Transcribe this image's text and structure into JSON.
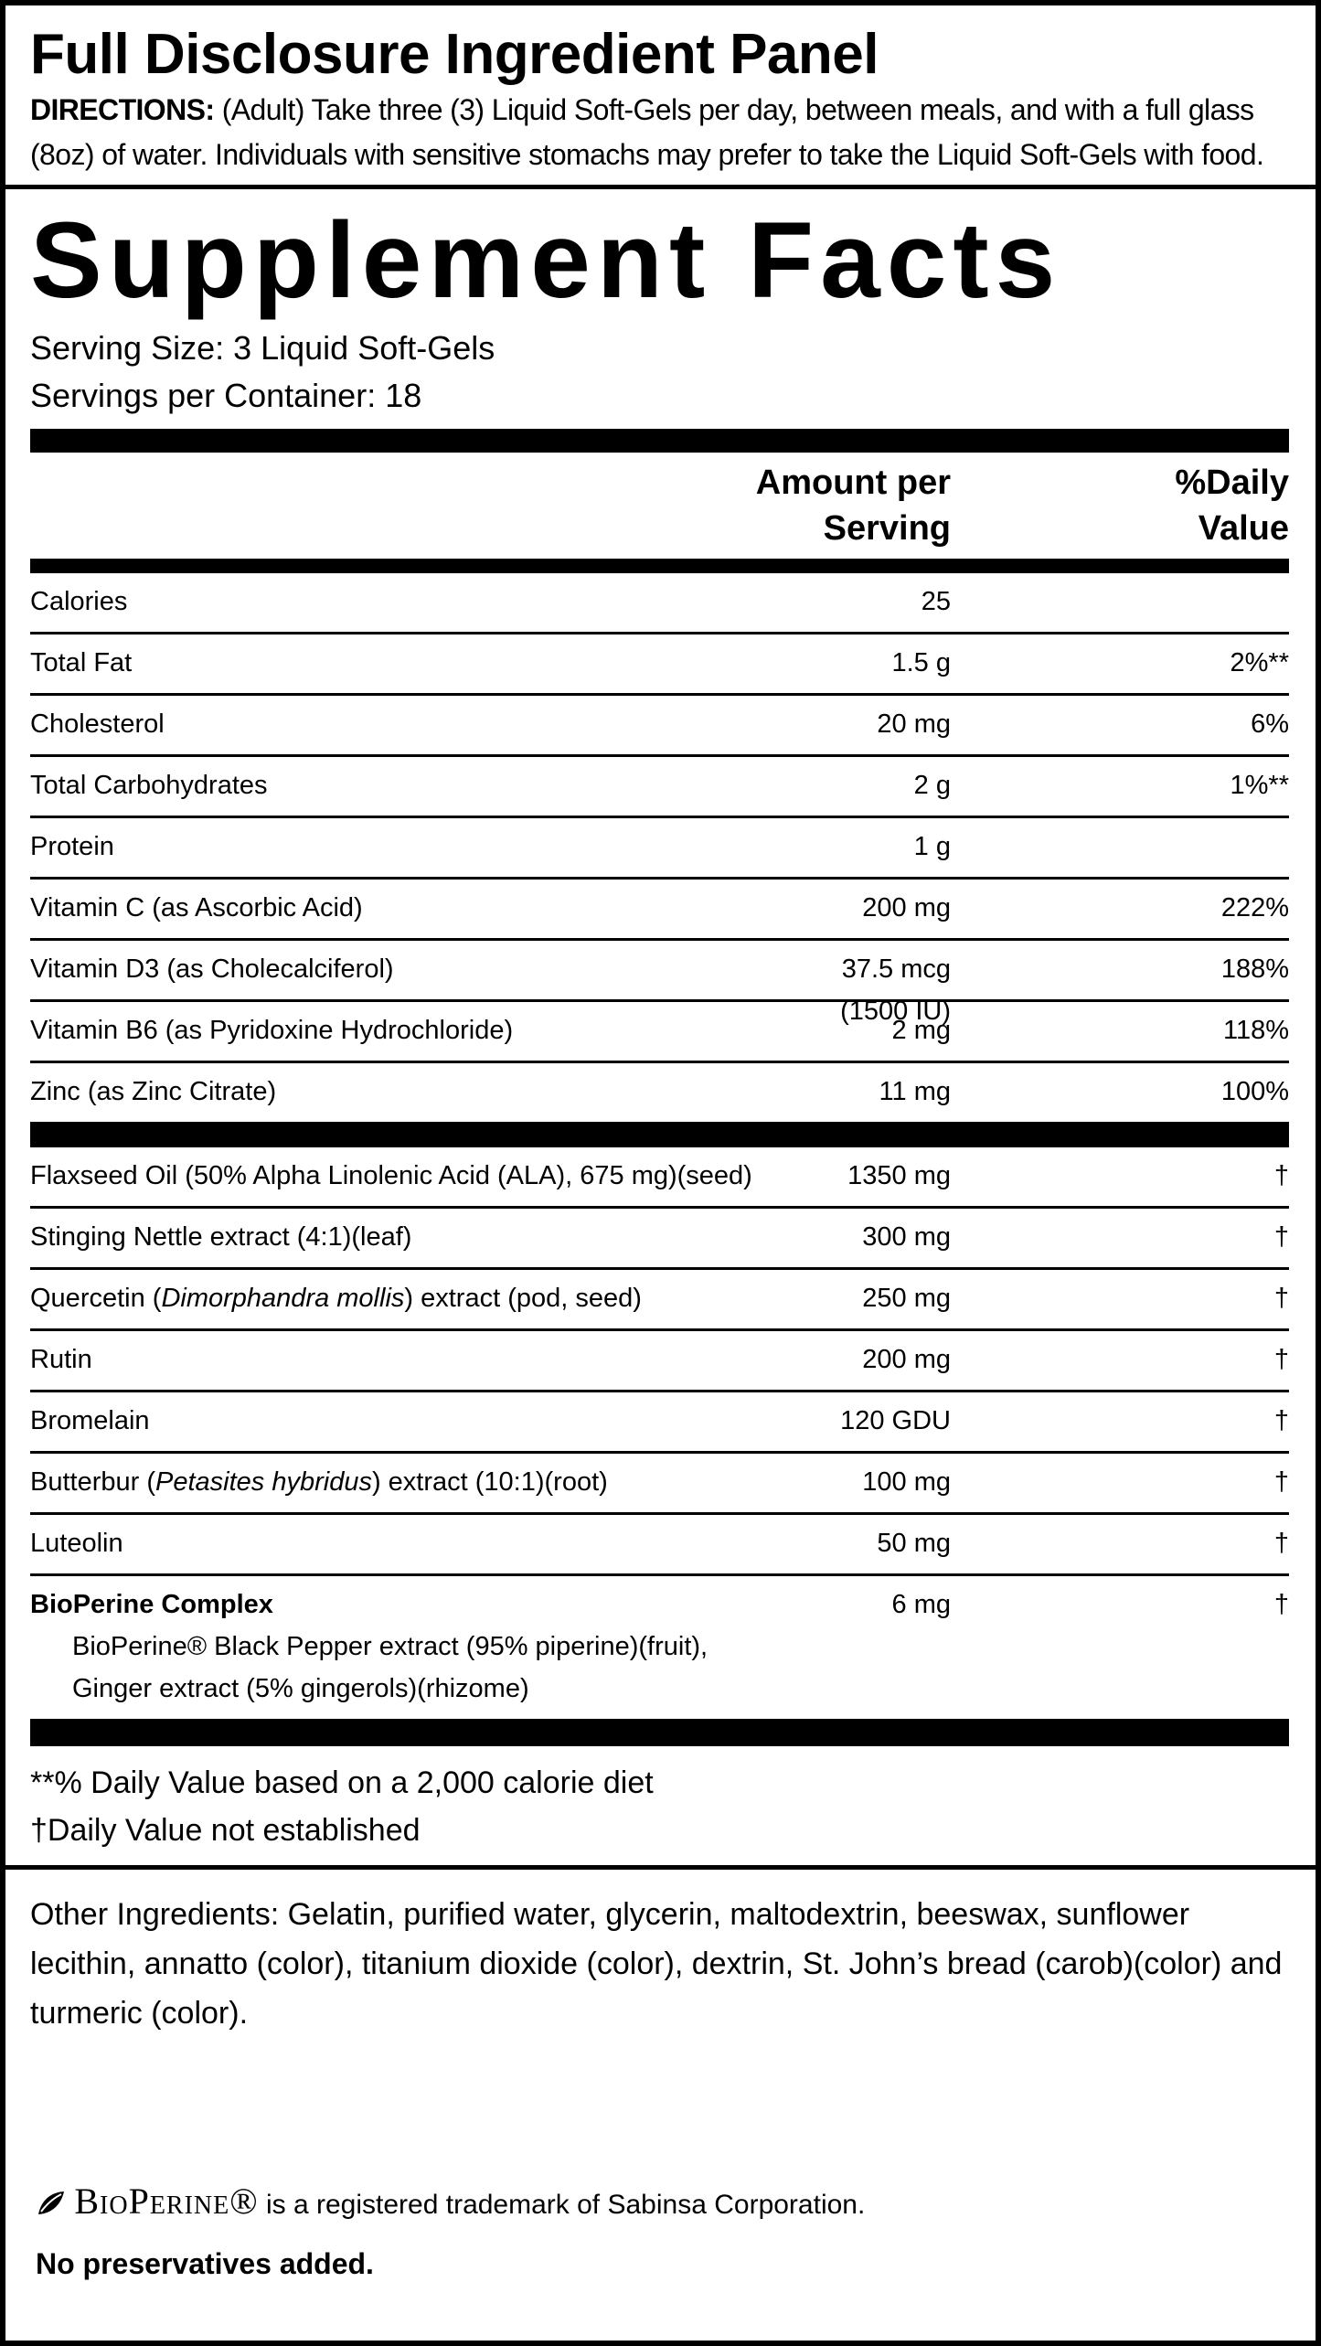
{
  "header": {
    "title": "Full Disclosure Ingredient Panel",
    "directions_label": "DIRECTIONS:",
    "directions": "(Adult) Take three (3) Liquid Soft-Gels per day, between meals, and with a full glass (8oz) of water. Individuals with sensitive stomachs may prefer to take the Liquid Soft-Gels with food."
  },
  "facts": {
    "title": "Supplement Facts",
    "serving_size": "Serving Size:  3 Liquid Soft-Gels",
    "servings_per_container": "Servings per Container:  18",
    "headers": {
      "amount": "Amount per Serving",
      "daily_value": "%Daily Value"
    },
    "sections": [
      {
        "rows": [
          {
            "name": "Calories",
            "amount": "25"
          },
          {
            "name": "Total Fat",
            "amount": "1.5 g",
            "dv": "2%**"
          },
          {
            "name": "Cholesterol",
            "amount": "20 mg",
            "dv": "6%"
          },
          {
            "name": "Total Carbohydrates",
            "amount": "2 g",
            "dv": "1%**"
          },
          {
            "name": "Protein",
            "amount": "1 g"
          },
          {
            "name": "Vitamin C (as Ascorbic Acid)",
            "amount": "200 mg",
            "dv": "222%"
          },
          {
            "name": "Vitamin D3 (as Cholecalciferol)",
            "amount": "37.5 mcg",
            "amount_detail": "(1500 IU)",
            "dv": "188%"
          },
          {
            "name": "Vitamin B6 (as Pyridoxine Hydrochloride)",
            "amount": "2 mg",
            "dv": "118%"
          },
          {
            "name": "Zinc (as Zinc Citrate)",
            "amount": "11 mg",
            "dv": "100%"
          }
        ]
      },
      {
        "rows": [
          {
            "name": "Flaxseed Oil (50% Alpha Linolenic Acid (ALA), 675 mg)(seed)",
            "amount": "1350 mg",
            "dv": "†"
          },
          {
            "name": "Stinging Nettle extract (4:1)(leaf)",
            "amount": "300 mg",
            "dv": "†"
          },
          {
            "name": "Quercetin (Dimorphandra mollis) extract (pod, seed)",
            "italic": "Dimorphandra mollis",
            "amount": "250 mg",
            "dv": "†"
          },
          {
            "name": "Rutin",
            "amount": "200 mg",
            "dv": "†"
          },
          {
            "name": "Bromelain",
            "amount": "120 GDU",
            "dv": "†"
          },
          {
            "name": "Butterbur (Petasites hybridus) extract (10:1)(root)",
            "italic": "Petasites hybridus",
            "amount": "100 mg",
            "dv": "†"
          },
          {
            "name": "Luteolin",
            "amount": "50 mg",
            "dv": "†"
          },
          {
            "name": "BioPerine Complex",
            "bold": true,
            "amount": "6 mg",
            "dv": "†",
            "detail": [
              "BioPerine® Black Pepper extract (95% piperine)(fruit),",
              "Ginger extract (5% gingerols)(rhizome)"
            ]
          }
        ]
      }
    ],
    "footnotes": [
      "**% Daily Value based on a 2,000 calorie diet",
      "†Daily Value not established"
    ]
  },
  "other_ingredients": "Other Ingredients:  Gelatin, purified water, glycerin, maltodextrin, beeswax, sunflower lecithin, annatto (color), titanium dioxide (color), dextrin, St. John’s bread (carob)(color) and turmeric (color).",
  "trademark": {
    "brand": "BioPerine®",
    "text": "is a registered trademark of Sabinsa Corporation."
  },
  "note": "No preservatives added."
}
